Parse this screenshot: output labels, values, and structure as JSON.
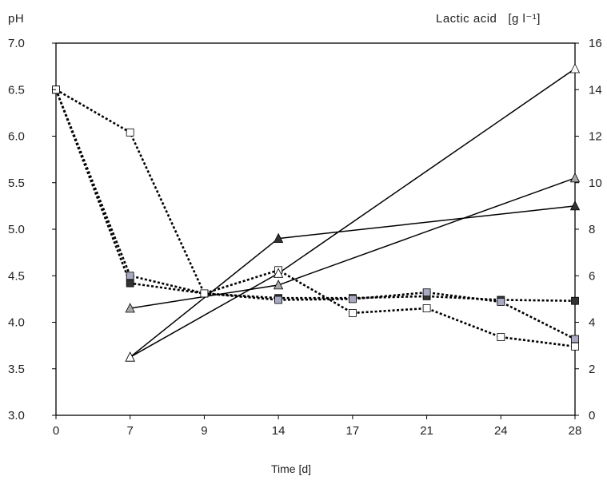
{
  "chart_data": {
    "type": "line",
    "title": "",
    "xlabel": "Time [d]",
    "ylabel_left": "pH",
    "ylabel_right": "Lactic acid   [g l⁻¹]",
    "x_categories": [
      "0",
      "7",
      "9",
      "14",
      "17",
      "21",
      "24",
      "28"
    ],
    "y_left_lim": [
      3.0,
      7.0
    ],
    "y_left_ticks": [
      "3.0",
      "3.5",
      "4.0",
      "4.5",
      "5.0",
      "5.5",
      "6.0",
      "6.5",
      "7.0"
    ],
    "y_right_lim": [
      0,
      16
    ],
    "y_right_ticks": [
      "0",
      "2",
      "4",
      "6",
      "8",
      "10",
      "12",
      "14",
      "16"
    ],
    "grid": false,
    "series": [
      {
        "marker": "square-dark",
        "axis": "left",
        "line": "dotted",
        "x": [
          "0",
          "7",
          "9",
          "14",
          "17",
          "21",
          "24",
          "28"
        ],
        "values": [
          6.5,
          4.42,
          4.31,
          4.26,
          4.26,
          4.28,
          4.24,
          4.23
        ]
      },
      {
        "marker": "square-gray",
        "axis": "left",
        "line": "dotted",
        "x": [
          "0",
          "7",
          "9",
          "14",
          "17",
          "21",
          "24",
          "28"
        ],
        "values": [
          6.5,
          4.5,
          4.31,
          4.24,
          4.25,
          4.32,
          4.22,
          3.82
        ]
      },
      {
        "marker": "square-white",
        "axis": "left",
        "line": "dotted",
        "x": [
          "0",
          "7",
          "9",
          "14",
          "17",
          "21",
          "24",
          "28"
        ],
        "values": [
          6.5,
          6.04,
          4.31,
          4.56,
          4.1,
          4.15,
          3.84,
          3.74
        ]
      },
      {
        "marker": "triangle-dark",
        "axis": "right",
        "line": "solid",
        "x": [
          "7",
          "14",
          "28"
        ],
        "values": [
          2.5,
          7.6,
          9.0
        ]
      },
      {
        "marker": "triangle-gray",
        "axis": "right",
        "line": "solid",
        "x": [
          "7",
          "14",
          "28"
        ],
        "values": [
          4.6,
          5.6,
          10.2
        ]
      },
      {
        "marker": "triangle-white",
        "axis": "right",
        "line": "solid",
        "x": [
          "7",
          "14",
          "28"
        ],
        "values": [
          2.5,
          6.1,
          14.9
        ]
      }
    ],
    "colors": {
      "dark": "#333333",
      "gray": "#a8a8a8",
      "graysquare": "#a9a9c2",
      "white": "#ffffff",
      "stroke": "#000000"
    }
  }
}
